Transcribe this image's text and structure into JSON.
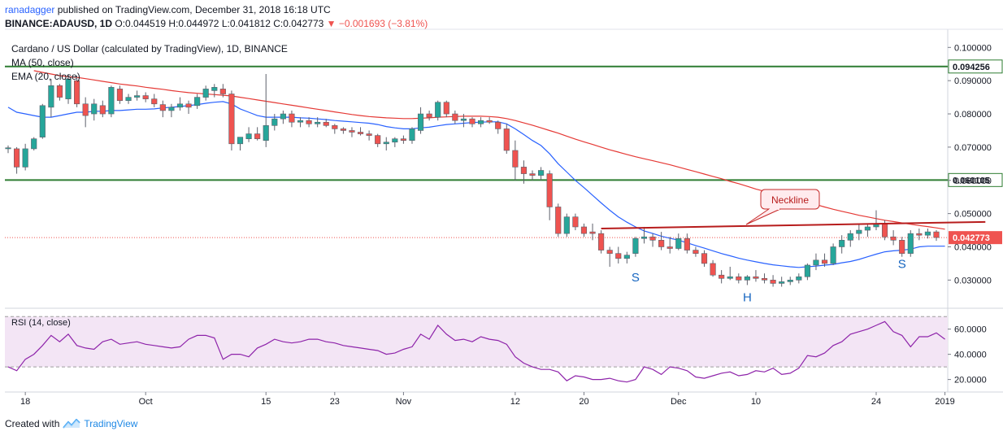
{
  "header": {
    "user": "ranadagger",
    "published": "published on TradingView.com, December 31, 2018 16:18 UTC",
    "symbol": "BINANCE:ADAUSD, 1D",
    "ohlc_open": "O:0.044519",
    "ohlc_high": "H:0.044972",
    "ohlc_low": "L:0.041812",
    "ohlc_close": "C:0.042773",
    "change": "▼ −0.001693 (−3.81%)"
  },
  "legend": {
    "title": "Cardano / US Dollar (calculated by TradingView), 1D, BINANCE",
    "ma": "MA (50, close)",
    "ema": "EMA (20, close)",
    "rsi": "RSI (14, close)"
  },
  "annotations": {
    "neckline": "Neckline",
    "left_shoulder": "S",
    "head": "H",
    "right_shoulder": "S"
  },
  "footer": {
    "created_with": "Created with",
    "brand": "TradingView"
  },
  "colors": {
    "up": "#26a69a",
    "down": "#ef5350",
    "ma": "#2962ff",
    "ema": "#e53935",
    "levels": "#2e7d32",
    "neckline": "#b71c1c",
    "rsi": "#8e24aa",
    "rsi_band": "#f3e5f5"
  },
  "chart_data": {
    "type": "candlestick",
    "price_axis": {
      "ticks": [
        "0.100000",
        "0.090000",
        "0.080000",
        "0.070000",
        "0.060000",
        "0.050000",
        "0.040000",
        "0.030000"
      ],
      "tick_values": [
        0.1,
        0.09,
        0.08,
        0.07,
        0.06,
        0.05,
        0.04,
        0.03
      ],
      "range": [
        0.0225,
        0.1035
      ]
    },
    "rsi_axis": {
      "ticks": [
        "60.0000",
        "40.0000",
        "20.0000"
      ],
      "tick_values": [
        60,
        40,
        20
      ],
      "range": [
        12,
        74
      ],
      "band": [
        30,
        70
      ]
    },
    "x_axis": {
      "labels": [
        "18",
        "Oct",
        "15",
        "23",
        "Nov",
        "12",
        "20",
        "Dec",
        "10",
        "24",
        "2019"
      ],
      "label_index": [
        2,
        16,
        30,
        38,
        46,
        59,
        67,
        78,
        87,
        101,
        109
      ]
    },
    "levels": [
      {
        "value": 0.094256,
        "label": "0.094256"
      },
      {
        "value": 0.060105,
        "label": "0.060105"
      }
    ],
    "last_price": {
      "value": 0.042773,
      "label": "0.042773"
    },
    "neckline": {
      "x": [
        69,
        112
      ],
      "y": [
        0.0455,
        0.0475
      ]
    },
    "pattern_points": [
      {
        "label": "S",
        "x": 73,
        "y": 0.0335
      },
      {
        "label": "H",
        "x": 86,
        "y": 0.0275
      },
      {
        "label": "S",
        "x": 104,
        "y": 0.0375
      }
    ],
    "candles": [
      [
        0.0695,
        0.0705,
        0.0682,
        0.0698
      ],
      [
        0.0695,
        0.07,
        0.062,
        0.064
      ],
      [
        0.064,
        0.071,
        0.063,
        0.0695
      ],
      [
        0.0695,
        0.073,
        0.069,
        0.0725
      ],
      [
        0.073,
        0.083,
        0.0725,
        0.0825
      ],
      [
        0.082,
        0.0905,
        0.079,
        0.0885
      ],
      [
        0.0885,
        0.089,
        0.084,
        0.085
      ],
      [
        0.0845,
        0.092,
        0.083,
        0.0905
      ],
      [
        0.09,
        0.0915,
        0.082,
        0.083
      ],
      [
        0.083,
        0.085,
        0.076,
        0.0795
      ],
      [
        0.08,
        0.0845,
        0.078,
        0.083
      ],
      [
        0.0825,
        0.084,
        0.079,
        0.08
      ],
      [
        0.08,
        0.0885,
        0.079,
        0.088
      ],
      [
        0.0875,
        0.0885,
        0.083,
        0.084
      ],
      [
        0.084,
        0.086,
        0.083,
        0.085
      ],
      [
        0.085,
        0.087,
        0.084,
        0.0855
      ],
      [
        0.0855,
        0.0865,
        0.0835,
        0.0845
      ],
      [
        0.0845,
        0.086,
        0.082,
        0.083
      ],
      [
        0.0828,
        0.084,
        0.079,
        0.081
      ],
      [
        0.081,
        0.083,
        0.079,
        0.082
      ],
      [
        0.082,
        0.085,
        0.081,
        0.083
      ],
      [
        0.083,
        0.084,
        0.08,
        0.082
      ],
      [
        0.0825,
        0.086,
        0.0815,
        0.085
      ],
      [
        0.085,
        0.0885,
        0.084,
        0.0875
      ],
      [
        0.087,
        0.089,
        0.085,
        0.088
      ],
      [
        0.0875,
        0.089,
        0.085,
        0.086
      ],
      [
        0.086,
        0.087,
        0.069,
        0.071
      ],
      [
        0.071,
        0.073,
        0.069,
        0.073
      ],
      [
        0.0725,
        0.076,
        0.0715,
        0.074
      ],
      [
        0.074,
        0.076,
        0.072,
        0.0725
      ],
      [
        0.072,
        0.092,
        0.07,
        0.0765
      ],
      [
        0.0765,
        0.08,
        0.075,
        0.0785
      ],
      [
        0.0785,
        0.081,
        0.077,
        0.08
      ],
      [
        0.08,
        0.081,
        0.076,
        0.0775
      ],
      [
        0.0775,
        0.079,
        0.076,
        0.078
      ],
      [
        0.078,
        0.079,
        0.076,
        0.077
      ],
      [
        0.077,
        0.079,
        0.076,
        0.0775
      ],
      [
        0.0775,
        0.0785,
        0.076,
        0.0765
      ],
      [
        0.0765,
        0.077,
        0.074,
        0.0755
      ],
      [
        0.0755,
        0.076,
        0.074,
        0.075
      ],
      [
        0.075,
        0.076,
        0.073,
        0.0745
      ],
      [
        0.0745,
        0.076,
        0.0735,
        0.074
      ],
      [
        0.074,
        0.075,
        0.072,
        0.0735
      ],
      [
        0.0735,
        0.074,
        0.07,
        0.071
      ],
      [
        0.071,
        0.073,
        0.069,
        0.0715
      ],
      [
        0.0715,
        0.073,
        0.07,
        0.0725
      ],
      [
        0.0725,
        0.0735,
        0.071,
        0.072
      ],
      [
        0.072,
        0.076,
        0.071,
        0.0755
      ],
      [
        0.075,
        0.082,
        0.074,
        0.08
      ],
      [
        0.08,
        0.081,
        0.078,
        0.079
      ],
      [
        0.079,
        0.084,
        0.078,
        0.0835
      ],
      [
        0.0835,
        0.084,
        0.079,
        0.08
      ],
      [
        0.08,
        0.081,
        0.077,
        0.078
      ],
      [
        0.078,
        0.08,
        0.076,
        0.0785
      ],
      [
        0.0785,
        0.079,
        0.076,
        0.077
      ],
      [
        0.077,
        0.079,
        0.076,
        0.078
      ],
      [
        0.078,
        0.079,
        0.077,
        0.0775
      ],
      [
        0.0775,
        0.078,
        0.074,
        0.0755
      ],
      [
        0.0755,
        0.077,
        0.068,
        0.069
      ],
      [
        0.069,
        0.072,
        0.06,
        0.064
      ],
      [
        0.064,
        0.066,
        0.059,
        0.062
      ],
      [
        0.062,
        0.063,
        0.06,
        0.0615
      ],
      [
        0.0615,
        0.064,
        0.06,
        0.063
      ],
      [
        0.062,
        0.063,
        0.048,
        0.052
      ],
      [
        0.052,
        0.053,
        0.043,
        0.044
      ],
      [
        0.044,
        0.05,
        0.043,
        0.049
      ],
      [
        0.049,
        0.05,
        0.045,
        0.046
      ],
      [
        0.046,
        0.047,
        0.043,
        0.044
      ],
      [
        0.0445,
        0.047,
        0.042,
        0.044
      ],
      [
        0.044,
        0.045,
        0.038,
        0.039
      ],
      [
        0.039,
        0.04,
        0.034,
        0.038
      ],
      [
        0.038,
        0.04,
        0.035,
        0.0365
      ],
      [
        0.0365,
        0.0385,
        0.035,
        0.0375
      ],
      [
        0.038,
        0.043,
        0.037,
        0.0425
      ],
      [
        0.0425,
        0.046,
        0.041,
        0.043
      ],
      [
        0.043,
        0.044,
        0.04,
        0.042
      ],
      [
        0.042,
        0.0445,
        0.039,
        0.04
      ],
      [
        0.04,
        0.043,
        0.038,
        0.0395
      ],
      [
        0.0395,
        0.044,
        0.039,
        0.0425
      ],
      [
        0.0425,
        0.044,
        0.038,
        0.039
      ],
      [
        0.039,
        0.04,
        0.037,
        0.038
      ],
      [
        0.038,
        0.039,
        0.034,
        0.035
      ],
      [
        0.035,
        0.036,
        0.031,
        0.0315
      ],
      [
        0.0315,
        0.033,
        0.029,
        0.0305
      ],
      [
        0.0305,
        0.034,
        0.03,
        0.031
      ],
      [
        0.031,
        0.032,
        0.029,
        0.03
      ],
      [
        0.03,
        0.0315,
        0.0285,
        0.031
      ],
      [
        0.031,
        0.033,
        0.0295,
        0.0305
      ],
      [
        0.0305,
        0.032,
        0.029,
        0.03
      ],
      [
        0.03,
        0.0315,
        0.028,
        0.029
      ],
      [
        0.029,
        0.031,
        0.028,
        0.0295
      ],
      [
        0.0295,
        0.031,
        0.0285,
        0.03
      ],
      [
        0.03,
        0.032,
        0.029,
        0.031
      ],
      [
        0.031,
        0.035,
        0.03,
        0.0345
      ],
      [
        0.0345,
        0.038,
        0.033,
        0.036
      ],
      [
        0.036,
        0.038,
        0.034,
        0.035
      ],
      [
        0.035,
        0.041,
        0.0345,
        0.04
      ],
      [
        0.04,
        0.0435,
        0.038,
        0.042
      ],
      [
        0.042,
        0.045,
        0.04,
        0.044
      ],
      [
        0.044,
        0.047,
        0.042,
        0.045
      ],
      [
        0.045,
        0.047,
        0.043,
        0.046
      ],
      [
        0.046,
        0.051,
        0.045,
        0.047
      ],
      [
        0.047,
        0.048,
        0.042,
        0.043
      ],
      [
        0.043,
        0.045,
        0.0405,
        0.042
      ],
      [
        0.042,
        0.043,
        0.037,
        0.038
      ],
      [
        0.038,
        0.045,
        0.037,
        0.044
      ],
      [
        0.044,
        0.0455,
        0.042,
        0.0435
      ],
      [
        0.0435,
        0.0455,
        0.0425,
        0.0445
      ],
      [
        0.0445,
        0.045,
        0.0418,
        0.0428
      ]
    ],
    "ma": [
      0.082,
      0.0805,
      0.08,
      0.0795,
      0.079,
      0.079,
      0.0795,
      0.08,
      0.0805,
      0.0805,
      0.0808,
      0.0808,
      0.081,
      0.081,
      0.0812,
      0.0814,
      0.0814,
      0.0815,
      0.0818,
      0.082,
      0.0822,
      0.0825,
      0.0828,
      0.0832,
      0.0835,
      0.0837,
      0.083,
      0.0815,
      0.0805,
      0.0795,
      0.079,
      0.079,
      0.079,
      0.079,
      0.0788,
      0.0787,
      0.0785,
      0.0783,
      0.078,
      0.0778,
      0.0776,
      0.0774,
      0.0772,
      0.0768,
      0.0762,
      0.0758,
      0.0755,
      0.0755,
      0.0758,
      0.076,
      0.0764,
      0.0768,
      0.077,
      0.0772,
      0.0774,
      0.0775,
      0.0776,
      0.0776,
      0.077,
      0.0755,
      0.0738,
      0.072,
      0.0705,
      0.068,
      0.065,
      0.0625,
      0.06,
      0.0578,
      0.0555,
      0.0532,
      0.051,
      0.049,
      0.0474,
      0.046,
      0.0448,
      0.044,
      0.0432,
      0.0426,
      0.042,
      0.0412,
      0.0404,
      0.0396,
      0.0388,
      0.038,
      0.0373,
      0.0366,
      0.036,
      0.0355,
      0.035,
      0.0346,
      0.0343,
      0.034,
      0.0338,
      0.034,
      0.0342,
      0.0345,
      0.0347,
      0.0352,
      0.0356,
      0.0362,
      0.037,
      0.0378,
      0.0385,
      0.0388,
      0.039,
      0.0393,
      0.04,
      0.0402,
      0.0402,
      0.0402
    ],
    "ema": [
      null,
      null,
      null,
      0.093,
      0.0925,
      0.092,
      0.0915,
      0.0912,
      0.091,
      0.0906,
      0.0902,
      0.0898,
      0.0894,
      0.089,
      0.0887,
      0.0884,
      0.088,
      0.0877,
      0.0874,
      0.087,
      0.0867,
      0.0864,
      0.0862,
      0.086,
      0.0858,
      0.0856,
      0.0854,
      0.085,
      0.0846,
      0.0842,
      0.0838,
      0.0834,
      0.083,
      0.0826,
      0.0822,
      0.0818,
      0.0814,
      0.081,
      0.0806,
      0.0802,
      0.0798,
      0.0795,
      0.0792,
      0.079,
      0.0788,
      0.0787,
      0.0786,
      0.0786,
      0.0787,
      0.0788,
      0.079,
      0.0791,
      0.0792,
      0.0793,
      0.0793,
      0.0793,
      0.0792,
      0.079,
      0.0786,
      0.078,
      0.0773,
      0.0766,
      0.0758,
      0.075,
      0.0742,
      0.0733,
      0.0724,
      0.0716,
      0.0708,
      0.07,
      0.0692,
      0.0685,
      0.0678,
      0.0671,
      0.0665,
      0.0659,
      0.0653,
      0.0647,
      0.064,
      0.0633,
      0.0626,
      0.0619,
      0.0612,
      0.0605,
      0.0597,
      0.059,
      0.0582,
      0.0574,
      0.0567,
      0.056,
      0.0553,
      0.0546,
      0.0539,
      0.0533,
      0.0527,
      0.052,
      0.0513,
      0.0507,
      0.0501,
      0.0495,
      0.049,
      0.0485,
      0.048,
      0.0476,
      0.0472,
      0.0468,
      0.0464,
      0.0461,
      0.0457,
      0.0453
    ],
    "rsi": [
      30,
      27,
      36,
      40,
      47,
      55,
      50,
      56,
      47,
      45,
      44,
      50,
      52,
      48,
      49,
      50,
      48,
      47,
      46,
      45,
      46,
      52,
      55,
      55,
      53,
      36,
      40,
      40,
      38,
      45,
      48,
      52,
      50,
      49,
      50,
      52,
      52,
      50,
      49,
      47,
      46,
      45,
      44,
      43,
      40,
      41,
      44,
      46,
      56,
      52,
      63,
      56,
      51,
      52,
      50,
      54,
      52,
      51,
      48,
      38,
      33,
      30,
      28,
      28,
      26,
      19,
      23,
      22,
      20,
      20,
      21,
      19,
      18,
      20,
      30,
      28,
      24,
      30,
      29,
      27,
      22,
      21,
      23,
      25,
      26,
      23,
      24,
      27,
      26,
      29,
      24,
      25,
      29,
      39,
      38,
      41,
      47,
      50,
      56,
      58,
      60,
      63,
      66,
      58,
      55,
      46,
      54,
      54,
      57,
      52
    ]
  }
}
